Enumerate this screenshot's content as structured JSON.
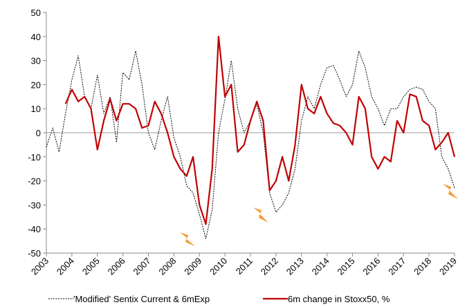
{
  "chart_data": {
    "type": "line",
    "x": [
      2003,
      2003.25,
      2003.5,
      2003.75,
      2004,
      2004.25,
      2004.5,
      2004.75,
      2005,
      2005.25,
      2005.5,
      2005.75,
      2006,
      2006.25,
      2006.5,
      2006.75,
      2007,
      2007.25,
      2007.5,
      2007.75,
      2008,
      2008.25,
      2008.5,
      2008.75,
      2009,
      2009.25,
      2009.5,
      2009.75,
      2010,
      2010.25,
      2010.5,
      2010.75,
      2011,
      2011.25,
      2011.5,
      2011.75,
      2012,
      2012.25,
      2012.5,
      2012.75,
      2013,
      2013.25,
      2013.5,
      2013.75,
      2014,
      2014.25,
      2014.5,
      2014.75,
      2015,
      2015.25,
      2015.5,
      2015.75,
      2016,
      2016.25,
      2016.5,
      2016.75,
      2017,
      2017.25,
      2017.5,
      2017.75,
      2018,
      2018.25,
      2018.5,
      2018.75,
      2019
    ],
    "series": [
      {
        "name": "'Modified' Sentix Current & 6mExp",
        "color": "#000000",
        "dashed": true,
        "values": [
          -6,
          2,
          -8,
          8,
          22,
          32,
          15,
          10,
          24,
          8,
          15,
          -4,
          25,
          22,
          34,
          20,
          0,
          -7,
          5,
          15,
          -2,
          -10,
          -22,
          -25,
          -34,
          -44,
          -32,
          0,
          14,
          30,
          10,
          0,
          5,
          12,
          0,
          -25,
          -33,
          -30,
          -25,
          -15,
          5,
          15,
          10,
          20,
          27,
          28,
          22,
          15,
          20,
          34,
          27,
          15,
          10,
          3,
          10,
          10,
          15,
          18,
          19,
          18,
          13,
          10,
          -10,
          -15,
          -23
        ]
      },
      {
        "name": "6m change in Stoxx50, %",
        "color": "#c00000",
        "dashed": false,
        "values": [
          null,
          null,
          null,
          12,
          18,
          13,
          15,
          10,
          -7,
          5,
          14,
          5,
          12,
          12,
          10,
          2,
          3,
          13,
          8,
          0,
          -10,
          -15,
          -18,
          -10,
          -30,
          -38,
          -15,
          40,
          15,
          20,
          -8,
          -5,
          5,
          13,
          5,
          -24,
          -20,
          -10,
          -20,
          -5,
          20,
          10,
          8,
          15,
          8,
          4,
          3,
          0,
          -5,
          15,
          10,
          -10,
          -15,
          -10,
          -12,
          5,
          0,
          16,
          15,
          5,
          3,
          -7,
          -4,
          0,
          -10
        ]
      }
    ],
    "xlim": [
      2003,
      2019
    ],
    "xticks": [
      2003,
      2004,
      2005,
      2006,
      2007,
      2008,
      2009,
      2010,
      2011,
      2012,
      2013,
      2014,
      2015,
      2016,
      2017,
      2018,
      2019
    ],
    "ylim": [
      -50,
      50
    ],
    "yticks": [
      -50,
      -40,
      -30,
      -20,
      -10,
      0,
      10,
      20,
      30,
      40,
      50
    ]
  }
}
